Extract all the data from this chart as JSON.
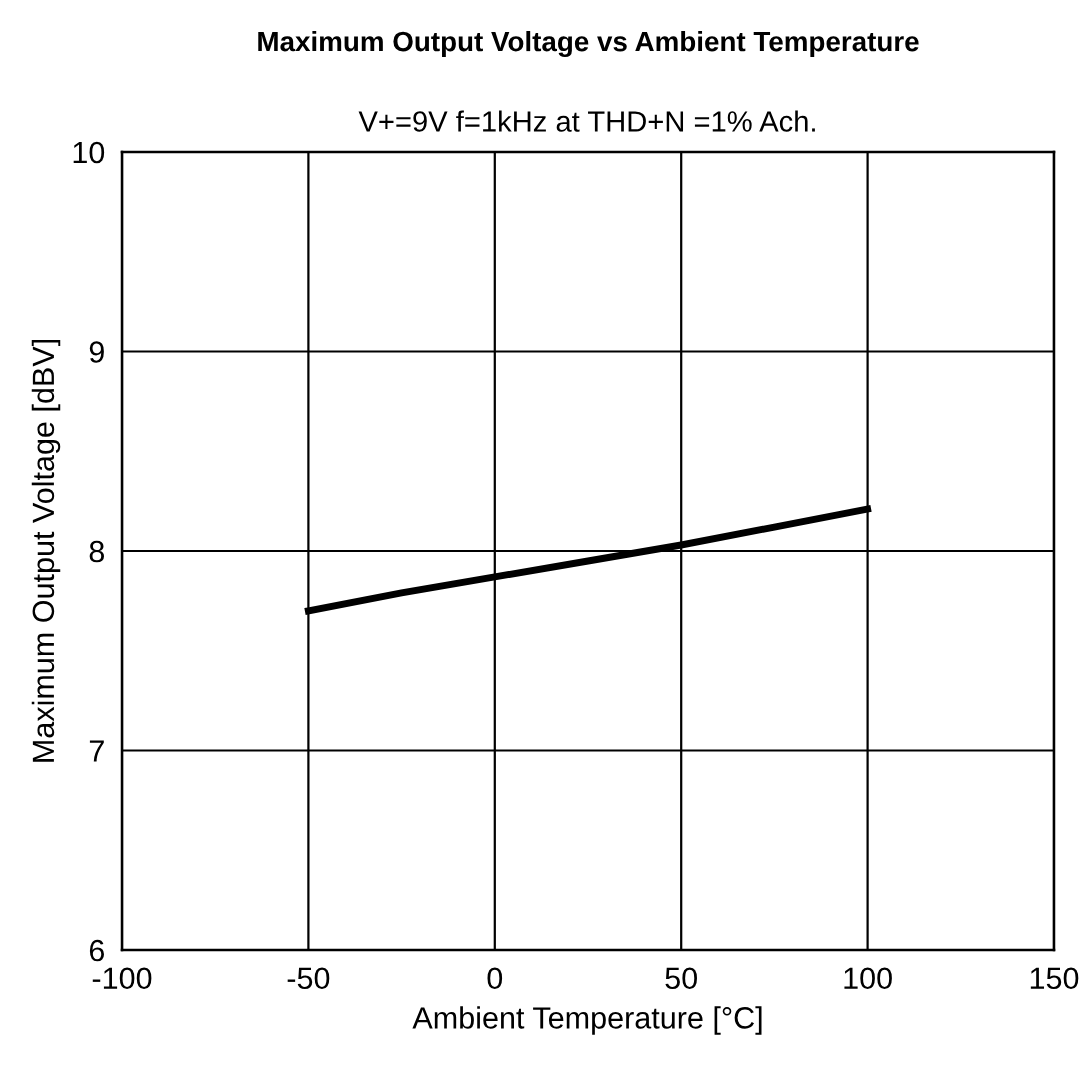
{
  "chart_data": {
    "type": "line",
    "title": "Maximum Output Voltage vs Ambient Temperature",
    "subtitle": "V+=9V f=1kHz at THD+N =1% Ach.",
    "xlabel": "Ambient Temperature [°C]",
    "ylabel": "Maximum Output Voltage [dBV]",
    "series": [
      {
        "color": "#000000",
        "x": [
          -50,
          -25,
          0,
          25,
          50,
          75,
          100
        ],
        "values": [
          7.7,
          7.79,
          7.87,
          7.95,
          8.03,
          8.12,
          8.21
        ]
      }
    ],
    "xlim": [
      -100,
      150
    ],
    "xticks": [
      -100,
      -50,
      0,
      50,
      100,
      150
    ],
    "ylim": [
      6,
      10
    ],
    "yticks": [
      6,
      7,
      8,
      9,
      10
    ],
    "grid": true,
    "line_style": "solid",
    "marker": "none"
  }
}
